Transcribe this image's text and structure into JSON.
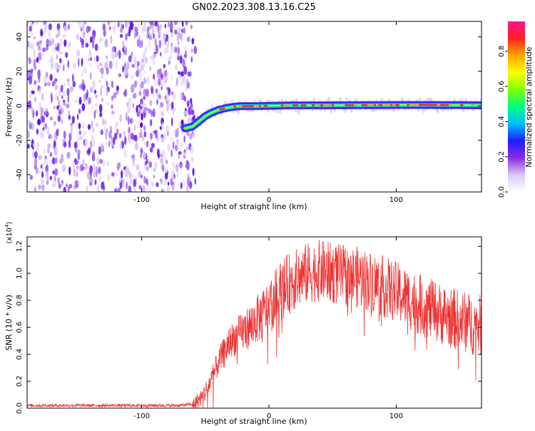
{
  "title": "GN02.2023.308.13.16.C25",
  "chart_data": [
    {
      "type": "heatmap",
      "xlabel": "Height of straight line (km)",
      "ylabel": "Frequency (Hz)",
      "xlim": [
        -190,
        167
      ],
      "ylim": [
        -50,
        49
      ],
      "xticks": [
        -100,
        0,
        100
      ],
      "yticks": [
        -40,
        -20,
        0,
        20,
        40
      ],
      "grid": false,
      "colorbar": {
        "label": "Normalized spectral amplitude",
        "range": [
          0,
          1
        ],
        "ticks": [
          "0.0",
          "0.2",
          "0.4",
          "0.6",
          "0.8"
        ],
        "colors": [
          "#ffffff",
          "#dcc8f7",
          "#8a2be2",
          "#1e1eff",
          "#00bfff",
          "#00ff7f",
          "#7fff00",
          "#ffff00",
          "#ffa500",
          "#ff2020",
          "#ff1493"
        ]
      },
      "noise_region_x": [
        -190,
        -60
      ],
      "ridge_x": [
        -65,
        -60,
        -55,
        -50,
        -45,
        -40,
        -35,
        -30,
        -25,
        -20,
        -10,
        0,
        20,
        50,
        100,
        130,
        167
      ],
      "ridge_frequency": [
        -13,
        -12,
        -9,
        -6,
        -4,
        -2.5,
        -1.5,
        -0.8,
        -0.3,
        -0.2,
        -0.2,
        0,
        0.3,
        0.3,
        0.5,
        0.5,
        0.3
      ]
    },
    {
      "type": "line",
      "xlabel": "Height of straight line (km)",
      "ylabel": "SNR (10 * v/v)",
      "y_multiplier": "(x10^4)",
      "xlim": [
        -190,
        167
      ],
      "ylim": [
        0,
        1.27
      ],
      "xticks": [
        -100,
        0,
        100
      ],
      "yticks": [
        "0.0",
        "0.2",
        "0.4",
        "0.6",
        "0.8",
        "1.0",
        "1.2"
      ],
      "grid": false,
      "series": [
        {
          "color": "#ee3333",
          "x": [
            -190,
            -100,
            -70,
            -60,
            -55,
            -50,
            -45,
            -40,
            -35,
            -30,
            -20,
            -10,
            0,
            10,
            20,
            30,
            40,
            50,
            60,
            70,
            80,
            90,
            100,
            110,
            120,
            130,
            140,
            150,
            160,
            167
          ],
          "y": [
            0.02,
            0.02,
            0.02,
            0.03,
            0.06,
            0.12,
            0.22,
            0.33,
            0.42,
            0.5,
            0.57,
            0.65,
            0.75,
            0.88,
            0.95,
            1.0,
            1.02,
            1.0,
            0.98,
            0.97,
            0.94,
            0.9,
            0.86,
            0.81,
            0.76,
            0.72,
            0.68,
            0.65,
            0.62,
            0.61
          ]
        }
      ]
    }
  ]
}
